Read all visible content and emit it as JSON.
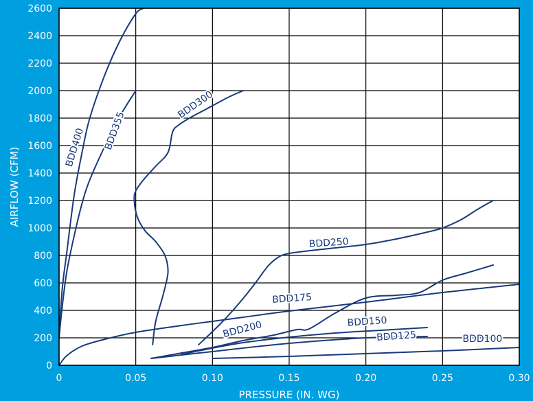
{
  "chart_data": {
    "type": "line",
    "title": "",
    "xlabel": "PRESSURE (IN. WG)",
    "ylabel": "AIRFLOW (CFM)",
    "xlim": [
      0,
      0.3
    ],
    "ylim": [
      0,
      2600
    ],
    "grid": true,
    "x_ticks": [
      "0",
      "0.05",
      "0.10",
      "0.15",
      "0.20",
      "0.25",
      "0.30"
    ],
    "x_tick_values": [
      0,
      0.05,
      0.1,
      0.15,
      0.2,
      0.25,
      0.3
    ],
    "y_ticks": [
      "0",
      "200",
      "400",
      "600",
      "800",
      "1000",
      "1200",
      "1400",
      "1600",
      "1800",
      "2000",
      "2200",
      "2400",
      "2600"
    ],
    "y_tick_values": [
      0,
      200,
      400,
      600,
      800,
      1000,
      1200,
      1400,
      1600,
      1800,
      2000,
      2200,
      2400,
      2600
    ],
    "colors": {
      "background": "#009fdf",
      "plot_background": "#ffffff",
      "line": "#1a3a7a",
      "grid": "#000000",
      "text": "#ffffff"
    },
    "series": [
      {
        "name": "BDD400",
        "x": [
          0,
          0.002,
          0.005,
          0.01,
          0.015,
          0.02,
          0.03,
          0.04,
          0.05,
          0.055
        ],
        "y": [
          200,
          550,
          820,
          1250,
          1550,
          1800,
          2120,
          2370,
          2560,
          2600
        ]
      },
      {
        "name": "BDD355",
        "x": [
          0,
          0.002,
          0.005,
          0.01,
          0.015,
          0.02,
          0.03,
          0.04,
          0.05
        ],
        "y": [
          200,
          420,
          680,
          950,
          1180,
          1350,
          1600,
          1820,
          2000
        ]
      },
      {
        "name": "BDD300",
        "x": [
          0.061,
          0.063,
          0.068,
          0.071,
          0.069,
          0.063,
          0.056,
          0.051,
          0.049,
          0.05,
          0.055,
          0.063,
          0.071,
          0.074,
          0.078,
          0.085,
          0.095,
          0.11,
          0.12
        ],
        "y": [
          150,
          320,
          520,
          680,
          800,
          900,
          980,
          1080,
          1200,
          1270,
          1350,
          1450,
          1550,
          1700,
          1750,
          1800,
          1860,
          1950,
          2000
        ]
      },
      {
        "name": "BDD250",
        "x": [
          0.091,
          0.105,
          0.118,
          0.128,
          0.136,
          0.142,
          0.148,
          0.16,
          0.18,
          0.2,
          0.22,
          0.24,
          0.25,
          0.262,
          0.272,
          0.283
        ],
        "y": [
          150,
          300,
          460,
          600,
          720,
          780,
          810,
          830,
          855,
          880,
          920,
          970,
          1000,
          1060,
          1130,
          1200
        ]
      },
      {
        "name": "BDD175",
        "x": [
          0,
          0.005,
          0.015,
          0.03,
          0.05,
          0.08,
          0.1,
          0.12,
          0.15,
          0.2,
          0.25,
          0.3
        ],
        "y": [
          0,
          70,
          140,
          190,
          240,
          290,
          320,
          350,
          395,
          460,
          530,
          590
        ]
      },
      {
        "name": "BDD200",
        "x": [
          0.06,
          0.08,
          0.1,
          0.12,
          0.14,
          0.155,
          0.163,
          0.18,
          0.2,
          0.22,
          0.235,
          0.25,
          0.265,
          0.283
        ],
        "y": [
          50,
          90,
          130,
          180,
          220,
          260,
          265,
          380,
          490,
          510,
          530,
          620,
          670,
          730
        ]
      },
      {
        "name": "BDD150",
        "x": [
          0.08,
          0.1,
          0.12,
          0.15,
          0.18,
          0.21,
          0.24
        ],
        "y": [
          80,
          125,
          165,
          205,
          235,
          255,
          275
        ]
      },
      {
        "name": "BDD125",
        "x": [
          0.06,
          0.1,
          0.15,
          0.2,
          0.24
        ],
        "y": [
          50,
          100,
          160,
          200,
          210
        ]
      },
      {
        "name": "BDD100",
        "x": [
          0.1,
          0.15,
          0.2,
          0.25,
          0.3
        ],
        "y": [
          50,
          65,
          85,
          105,
          130
        ]
      }
    ],
    "series_labels": [
      {
        "text": "BDD400",
        "x": 0.012,
        "y": 1580,
        "angle": -73
      },
      {
        "text": "BDD355",
        "x": 0.038,
        "y": 1700,
        "angle": -70
      },
      {
        "text": "BDD300",
        "x": 0.09,
        "y": 1880,
        "angle": -35
      },
      {
        "text": "BDD250",
        "x": 0.176,
        "y": 870,
        "angle": -4
      },
      {
        "text": "BDD175",
        "x": 0.152,
        "y": 465,
        "angle": -4
      },
      {
        "text": "BDD200",
        "x": 0.12,
        "y": 240,
        "angle": -15
      },
      {
        "text": "BDD150",
        "x": 0.201,
        "y": 296,
        "angle": -4
      },
      {
        "text": "BDD125",
        "x": 0.22,
        "y": 190,
        "angle": -4
      },
      {
        "text": "BDD100",
        "x": 0.276,
        "y": 170,
        "angle": 0
      }
    ]
  }
}
